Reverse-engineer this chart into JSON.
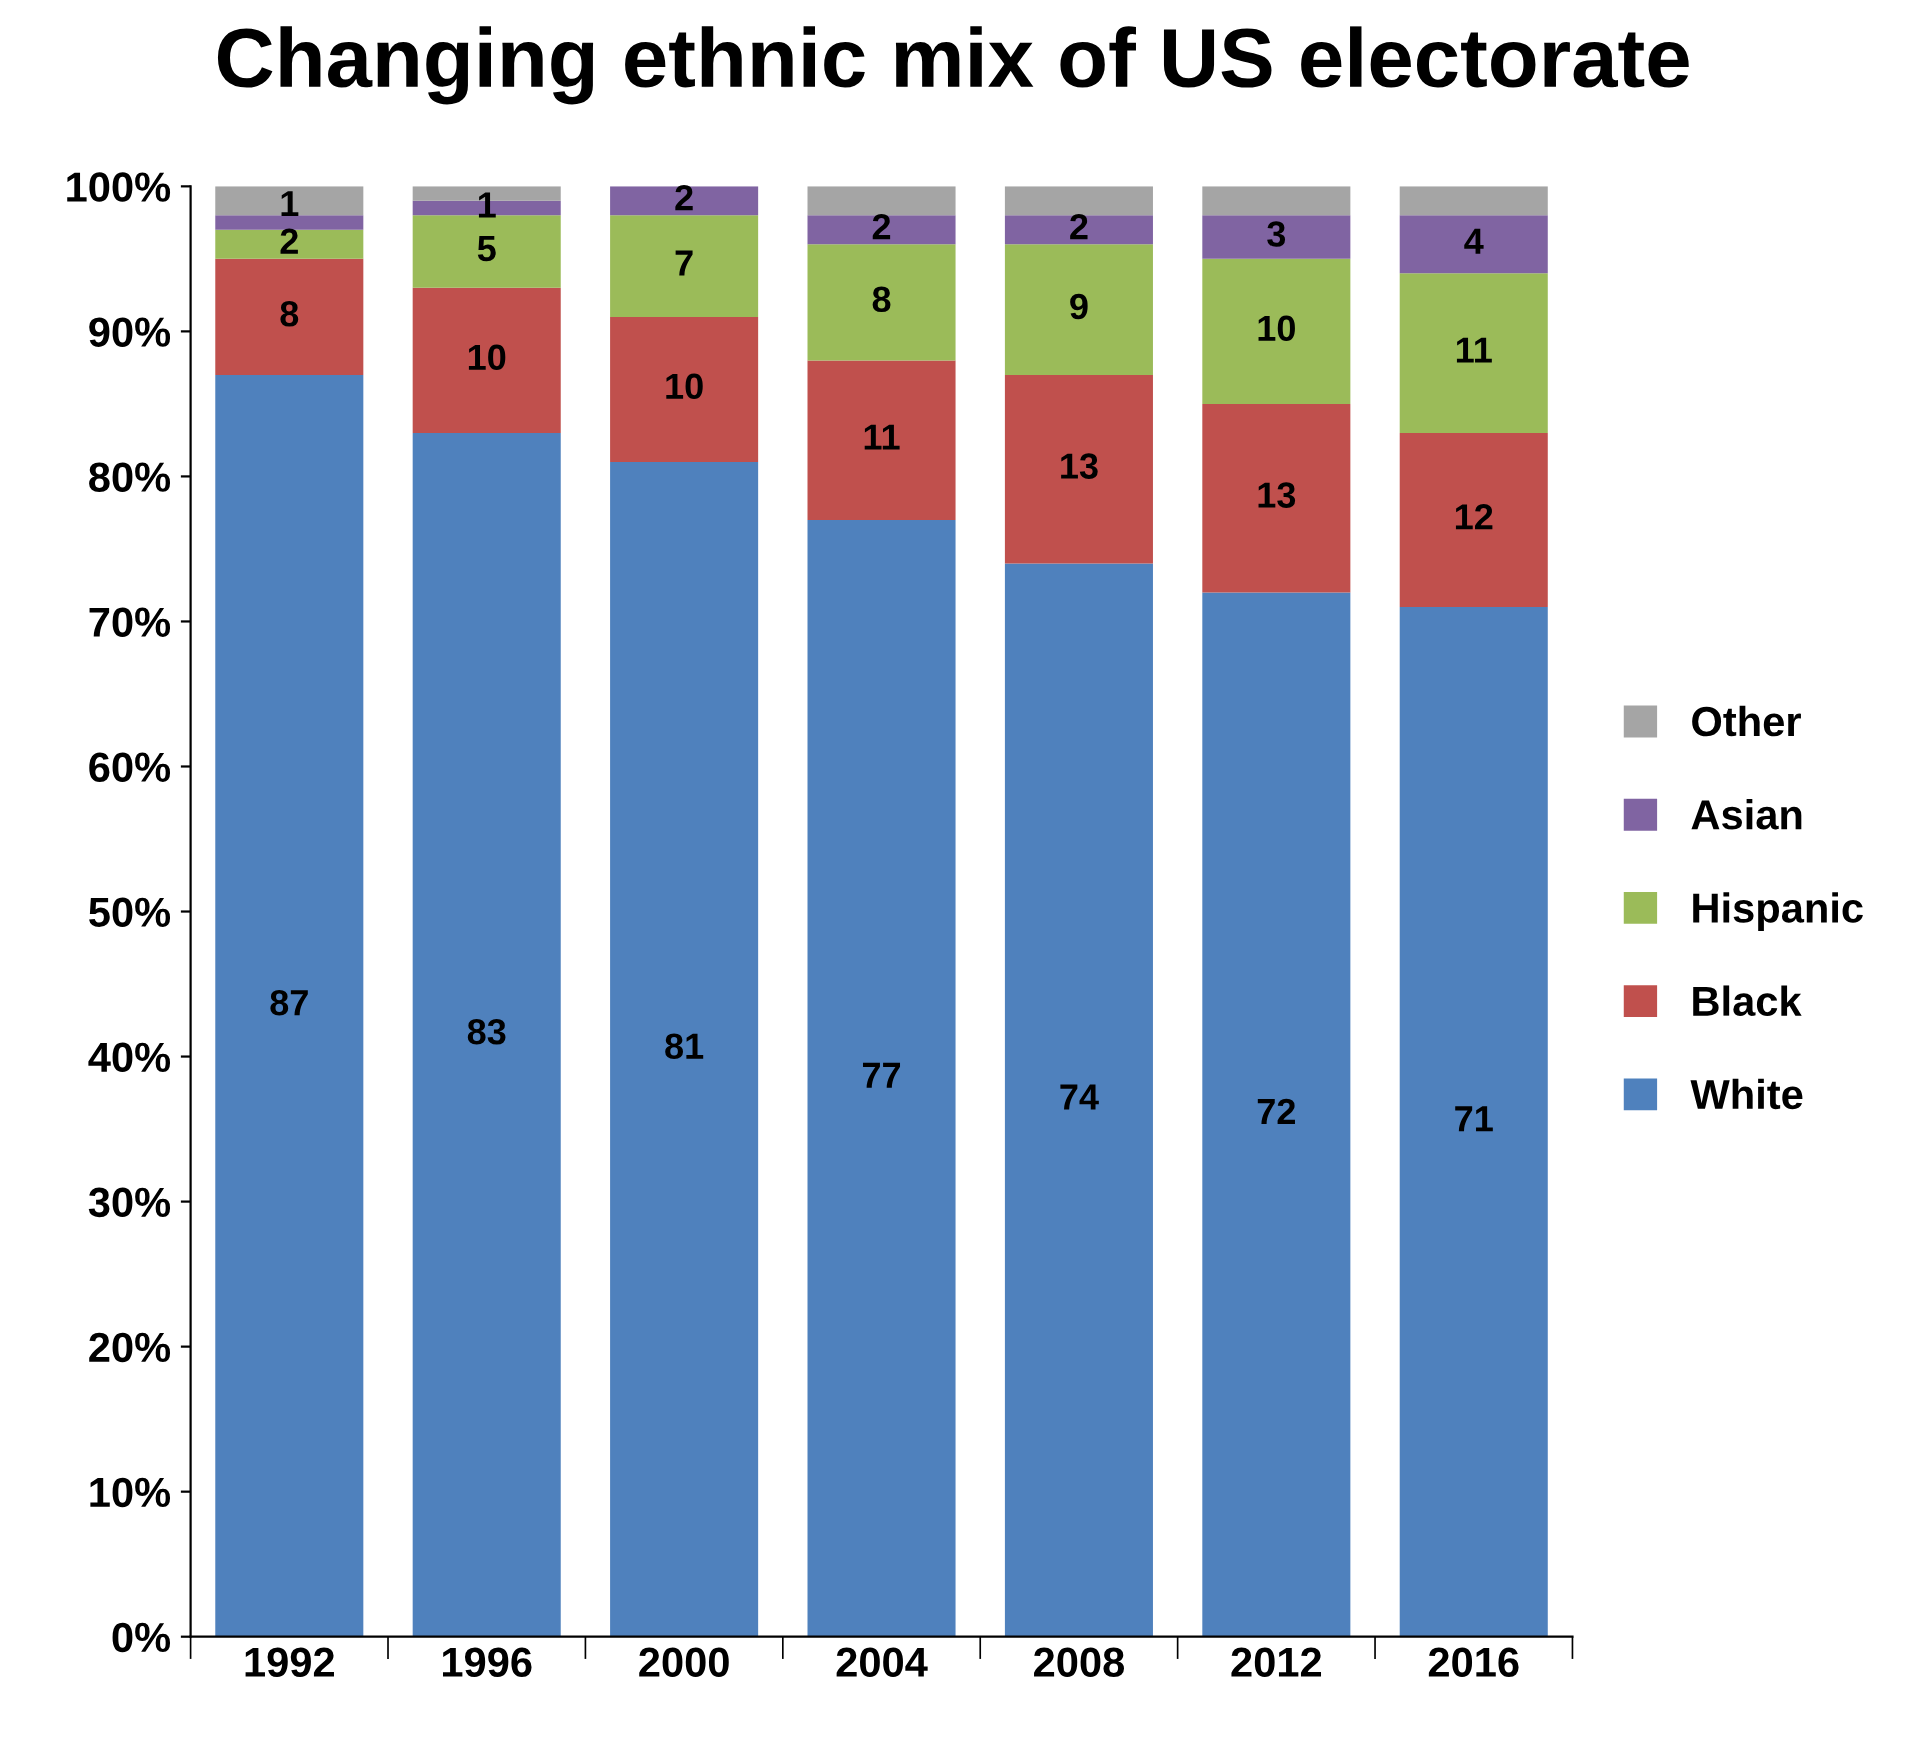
{
  "chart_data": {
    "type": "bar",
    "stacked": true,
    "title": "Changing ethnic mix of US electorate",
    "categories": [
      "1992",
      "1996",
      "2000",
      "2004",
      "2008",
      "2012",
      "2016"
    ],
    "series": [
      {
        "name": "White",
        "color": "#4f81bd",
        "values": [
          87,
          83,
          81,
          77,
          74,
          72,
          71
        ],
        "value_labels": [
          "87",
          "83",
          "81",
          "77",
          "74",
          "72",
          "71"
        ]
      },
      {
        "name": "Black",
        "color": "#c0504d",
        "values": [
          8,
          10,
          10,
          11,
          13,
          13,
          12
        ],
        "value_labels": [
          "8",
          "10",
          "10",
          "11",
          "13",
          "13",
          "12"
        ]
      },
      {
        "name": "Hispanic",
        "color": "#9bbb59",
        "values": [
          2,
          5,
          7,
          8,
          9,
          10,
          11
        ],
        "value_labels": [
          "2",
          "5",
          "7",
          "8",
          "9",
          "10",
          "11"
        ]
      },
      {
        "name": "Asian",
        "color": "#8064a2",
        "values": [
          1,
          1,
          2,
          2,
          2,
          3,
          4
        ],
        "value_labels": [
          "1",
          "1",
          "2",
          "2",
          "2",
          "3",
          "4"
        ]
      },
      {
        "name": "Other",
        "color": "#a5a5a5",
        "values": [
          2,
          1,
          null,
          2,
          2,
          2,
          2
        ]
      }
    ],
    "ylim": [
      0,
      100
    ],
    "yticks": [
      {
        "value": 0,
        "label": "0%"
      },
      {
        "value": 10,
        "label": "10%"
      },
      {
        "value": 20,
        "label": "20%"
      },
      {
        "value": 30,
        "label": "30%"
      },
      {
        "value": 40,
        "label": "40%"
      },
      {
        "value": 50,
        "label": "50%"
      },
      {
        "value": 60,
        "label": "60%"
      },
      {
        "value": 70,
        "label": "70%"
      },
      {
        "value": 80,
        "label": "80%"
      },
      {
        "value": 90,
        "label": "90%"
      },
      {
        "value": 100,
        "label": "100%"
      }
    ],
    "grid": false,
    "legend": "right"
  }
}
